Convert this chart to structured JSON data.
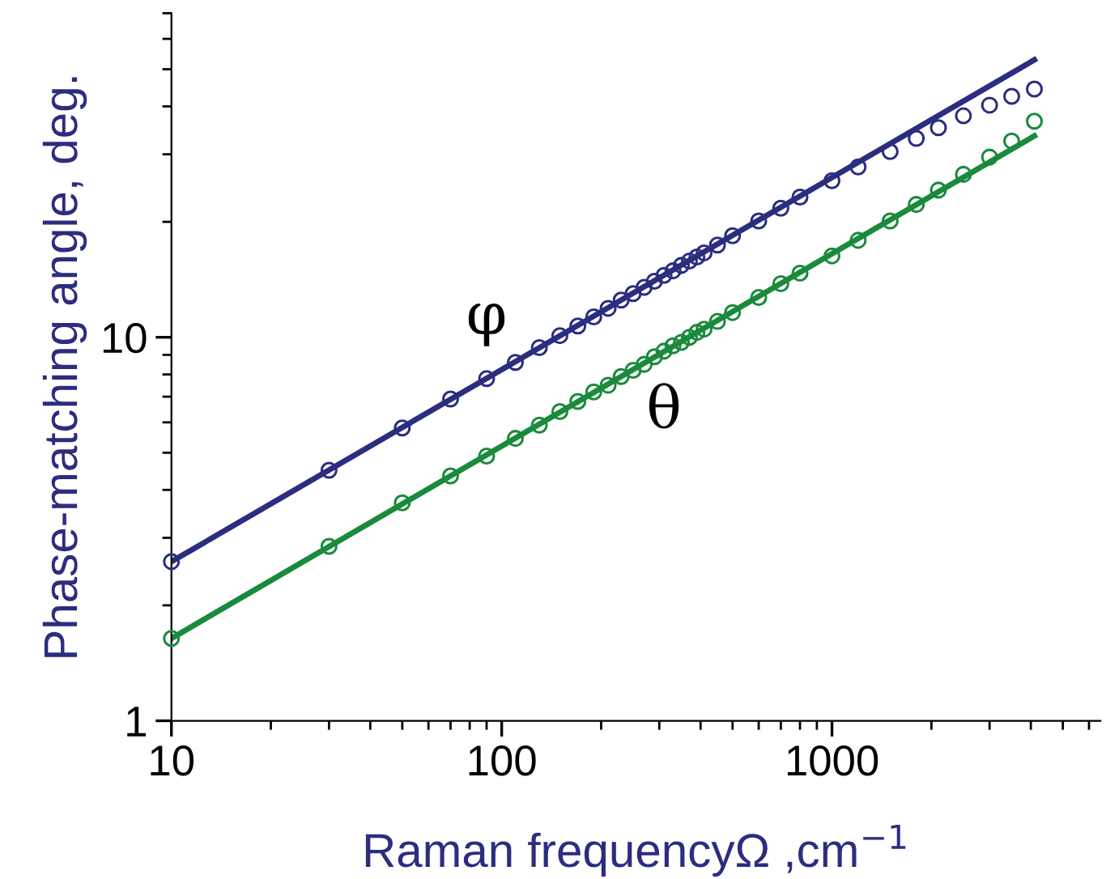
{
  "chart_data": {
    "type": "scatter",
    "xlabel": "Raman frequencyΩ ,cm$^{−1}$",
    "ylabel": "Phase-matching angle, deg.",
    "log": "xy",
    "xlim": [
      10,
      6500
    ],
    "ylim": [
      1,
      70
    ],
    "xticks": [
      10,
      100,
      1000
    ],
    "yticks": [
      1,
      10
    ],
    "grid": false,
    "legend": false,
    "marker": "circle",
    "series": [
      {
        "type": "line",
        "color": "#2b2d7f",
        "marker": "none",
        "x": [
          10,
          4100
        ],
        "values": [
          2.6,
          52.9
        ]
      },
      {
        "name": "φ",
        "color": "#2b2d7f",
        "x": [
          10,
          30,
          50,
          70,
          90,
          110,
          130,
          150,
          170,
          190,
          210,
          230,
          250,
          270,
          290,
          310,
          330,
          350,
          370,
          390,
          410,
          450,
          500,
          600,
          700,
          800,
          1000,
          1200,
          1500,
          1800,
          2100,
          2500,
          3000,
          3500,
          4100
        ],
        "values": [
          2.6,
          4.5,
          5.8,
          6.9,
          7.8,
          8.6,
          9.4,
          10.1,
          10.7,
          11.3,
          11.9,
          12.5,
          13.0,
          13.5,
          14.0,
          14.5,
          14.9,
          15.4,
          15.8,
          16.2,
          16.6,
          17.4,
          18.4,
          20.1,
          21.7,
          23.2,
          25.6,
          27.8,
          30.5,
          33.0,
          35.2,
          37.8,
          40.3,
          42.5,
          44.4
        ]
      },
      {
        "type": "line",
        "color": "#1a8a3c",
        "marker": "none",
        "x": [
          10,
          4100
        ],
        "values": [
          1.64,
          33.5
        ]
      },
      {
        "name": "θ",
        "color": "#1a8a3c",
        "x": [
          10,
          30,
          50,
          70,
          90,
          110,
          130,
          150,
          170,
          190,
          210,
          230,
          250,
          270,
          290,
          310,
          330,
          350,
          370,
          390,
          410,
          450,
          500,
          600,
          700,
          800,
          1000,
          1200,
          1500,
          1800,
          2100,
          2500,
          3000,
          3500,
          4100
        ],
        "values": [
          1.64,
          2.85,
          3.7,
          4.35,
          4.9,
          5.45,
          5.9,
          6.4,
          6.8,
          7.2,
          7.5,
          7.9,
          8.2,
          8.5,
          8.9,
          9.2,
          9.5,
          9.7,
          10.0,
          10.3,
          10.5,
          11.0,
          11.6,
          12.7,
          13.8,
          14.7,
          16.3,
          17.9,
          20.1,
          22.2,
          24.2,
          26.6,
          29.5,
          32.5,
          36.6
        ]
      }
    ]
  }
}
